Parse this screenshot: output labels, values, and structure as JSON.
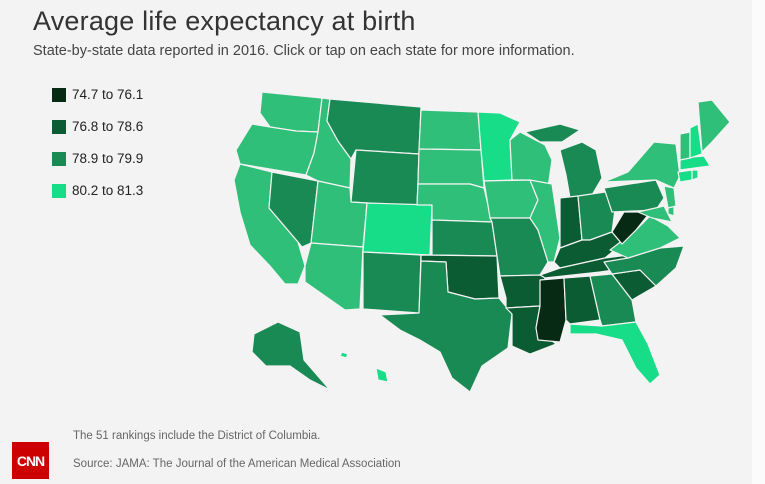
{
  "header": {
    "title": "Average life expectancy at birth",
    "subtitle": "State-by-state data reported in 2016. Click or tap on each state for more information."
  },
  "legend": [
    {
      "label": "74.7  to  76.1",
      "color": "#062a14"
    },
    {
      "label": "76.8  to  78.6",
      "color": "#0b5c32"
    },
    {
      "label": "78.9  to  79.9",
      "color": "#1a8a55"
    },
    {
      "label": "80.2  to  81.3",
      "color": "#17dc88"
    }
  ],
  "footer": {
    "note": "The 51 rankings include the District of Columbia.",
    "source": "Source: JAMA: The Journal of the American Medical Association",
    "logo": "CNN"
  }
}
